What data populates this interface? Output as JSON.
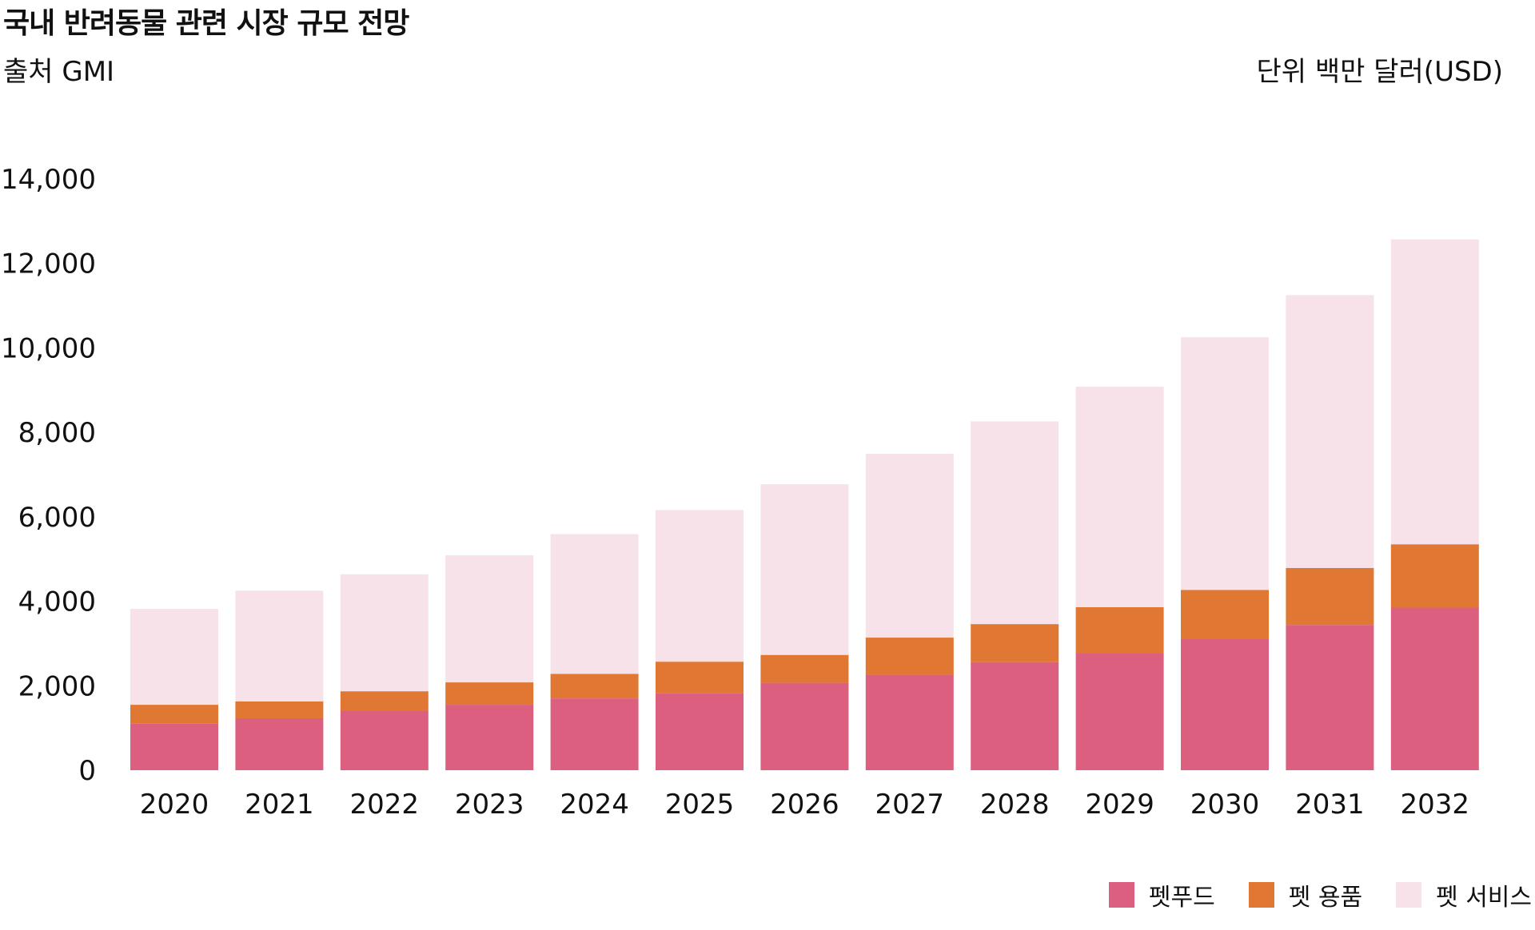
{
  "header": {
    "title": "국내 반려동물 관련 시장 규모 전망",
    "source": "출처 GMI",
    "unit": "단위 백만 달러(USD)"
  },
  "chart_data": {
    "type": "bar",
    "stacked": true,
    "categories": [
      "2020",
      "2021",
      "2022",
      "2023",
      "2024",
      "2025",
      "2026",
      "2027",
      "2028",
      "2029",
      "2030",
      "2031",
      "2032"
    ],
    "series": [
      {
        "name": "펫푸드",
        "color": "#dc5f80",
        "values": [
          1100,
          1230,
          1400,
          1550,
          1700,
          1830,
          2070,
          2260,
          2560,
          2780,
          3120,
          3440,
          3850
        ]
      },
      {
        "name": "펫 용품",
        "color": "#e07834",
        "values": [
          450,
          400,
          470,
          530,
          580,
          740,
          660,
          880,
          900,
          1080,
          1150,
          1350,
          1500
        ]
      },
      {
        "name": "펫 서비스",
        "color": "#f7e2ea",
        "values": [
          2270,
          2620,
          2770,
          3010,
          3310,
          3590,
          4040,
          4350,
          4800,
          5220,
          5980,
          6460,
          7220
        ]
      }
    ],
    "yticks": [
      "0",
      "2,000",
      "4,000",
      "6,000",
      "8,000",
      "10,000",
      "12,000",
      "14,000"
    ],
    "ytick_values": [
      0,
      2000,
      4000,
      6000,
      8000,
      10000,
      12000,
      14000
    ],
    "ylim": [
      0,
      14000
    ],
    "grid": false,
    "legend_position": "bottom-right"
  }
}
